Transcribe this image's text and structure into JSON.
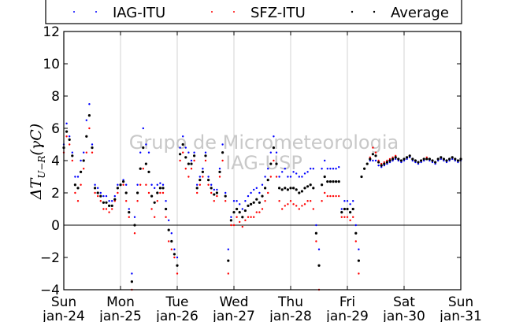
{
  "chart_data": {
    "type": "scatter",
    "ylabel": "ΔT_U−R(γC)",
    "ylabel_main": "ΔT",
    "ylabel_sub": "U−R",
    "ylabel_unit": "(γC)",
    "ylim": [
      -4,
      12
    ],
    "xlim": [
      0,
      7
    ],
    "yticks": [
      -4,
      -2,
      0,
      2,
      4,
      6,
      8,
      10,
      12
    ],
    "grid": "vertical",
    "legend_position": "top",
    "watermark": [
      "Grupo de Micrometeorologia",
      "IAG-USP"
    ],
    "xtick_labels": [
      {
        "day": "Sun",
        "date": "jan-24"
      },
      {
        "day": "Mon",
        "date": "jan-25"
      },
      {
        "day": "Tue",
        "date": "jan-26"
      },
      {
        "day": "Wed",
        "date": "jan-27"
      },
      {
        "day": "Thu",
        "date": "jan-28"
      },
      {
        "day": "Fri",
        "date": "jan-29"
      },
      {
        "day": "Sat",
        "date": "jan-30"
      },
      {
        "day": "Sun",
        "date": "jan-31"
      }
    ],
    "series": [
      {
        "name": "IAG-ITU",
        "color": "#0000ff",
        "x": [
          0.0,
          0.05,
          0.1,
          0.15,
          0.2,
          0.25,
          0.3,
          0.35,
          0.4,
          0.45,
          0.5,
          0.55,
          0.6,
          0.65,
          0.7,
          0.75,
          0.8,
          0.85,
          0.9,
          0.95,
          1.0,
          1.05,
          1.1,
          1.15,
          1.2,
          1.25,
          1.3,
          1.35,
          1.4,
          1.45,
          1.5,
          1.55,
          1.6,
          1.65,
          1.7,
          1.75,
          1.8,
          1.85,
          1.9,
          1.95,
          2.0,
          2.05,
          2.1,
          2.15,
          2.2,
          2.25,
          2.3,
          2.35,
          2.4,
          2.45,
          2.5,
          2.55,
          2.6,
          2.65,
          2.7,
          2.75,
          2.8,
          2.85,
          2.9,
          2.95,
          3.0,
          3.05,
          3.1,
          3.15,
          3.2,
          3.25,
          3.3,
          3.35,
          3.4,
          3.45,
          3.5,
          3.55,
          3.6,
          3.65,
          3.7,
          3.75,
          3.8,
          3.85,
          3.9,
          3.95,
          4.0,
          4.05,
          4.1,
          4.15,
          4.2,
          4.25,
          4.3,
          4.35,
          4.4,
          4.45,
          4.5,
          4.55,
          4.6,
          4.65,
          4.7,
          4.75,
          4.8,
          4.85,
          4.9,
          4.95,
          5.0,
          5.05,
          5.1,
          5.15,
          5.2,
          5.25,
          5.3,
          5.35,
          5.4,
          5.45,
          5.5,
          5.55,
          5.6,
          5.65,
          5.7,
          5.75,
          5.8,
          5.85,
          5.9,
          5.95,
          6.0,
          6.05,
          6.1,
          6.15,
          6.2,
          6.25,
          6.3,
          6.35,
          6.4,
          6.45,
          6.5,
          6.55,
          6.6,
          6.65,
          6.7,
          6.75,
          6.8,
          6.85,
          6.9,
          6.95,
          7.0
        ],
        "y": [
          5.0,
          6.3,
          5.5,
          4.5,
          3.0,
          3.0,
          4.0,
          4.5,
          6.5,
          7.5,
          5.0,
          2.5,
          2.3,
          2.0,
          1.8,
          1.8,
          1.5,
          1.5,
          1.8,
          2.5,
          2.5,
          2.8,
          2.5,
          1.0,
          -3.0,
          0.5,
          2.5,
          4.5,
          6.0,
          5.0,
          4.5,
          2.5,
          2.3,
          2.5,
          2.6,
          2.5,
          1.5,
          0.3,
          -0.5,
          -1.5,
          -2.0,
          4.8,
          5.5,
          4.8,
          4.5,
          4.0,
          4.5,
          2.5,
          3.0,
          3.5,
          4.5,
          3.0,
          2.5,
          2.2,
          2.2,
          3.5,
          5.0,
          2.0,
          -1.5,
          0.5,
          1.5,
          1.5,
          1.3,
          1.0,
          1.5,
          1.8,
          2.0,
          2.2,
          2.3,
          2.0,
          2.5,
          3.0,
          3.5,
          4.5,
          5.5,
          4.5,
          3.0,
          3.3,
          3.5,
          3.0,
          3.0,
          3.3,
          3.2,
          3.0,
          3.0,
          3.2,
          3.3,
          3.5,
          3.5,
          0.0,
          -1.5,
          3.5,
          4.0,
          3.5,
          3.5,
          3.5,
          3.5,
          3.6,
          1.0,
          1.5,
          1.5,
          1.3,
          1.5,
          0.0,
          -1.5,
          3.0,
          3.5,
          3.8,
          4.0,
          4.0,
          4.0,
          3.7,
          3.6,
          3.7,
          3.8,
          3.9,
          4.0,
          4.1,
          4.0,
          3.9,
          4.0,
          4.1,
          4.2,
          4.0,
          3.9,
          3.8,
          3.9,
          4.0,
          4.1,
          4.0,
          3.9,
          3.8,
          4.0,
          4.1,
          4.0,
          3.9,
          4.0,
          4.1,
          4.0,
          3.9,
          4.0
        ]
      },
      {
        "name": "SFZ-ITU",
        "color": "#ff0000",
        "x": [
          0.0,
          0.05,
          0.1,
          0.15,
          0.2,
          0.25,
          0.3,
          0.35,
          0.4,
          0.45,
          0.5,
          0.55,
          0.6,
          0.65,
          0.7,
          0.75,
          0.8,
          0.85,
          0.9,
          0.95,
          1.0,
          1.05,
          1.1,
          1.15,
          1.2,
          1.25,
          1.3,
          1.35,
          1.4,
          1.45,
          1.5,
          1.55,
          1.6,
          1.65,
          1.7,
          1.75,
          1.8,
          1.85,
          1.9,
          1.95,
          2.0,
          2.05,
          2.1,
          2.15,
          2.2,
          2.25,
          2.3,
          2.35,
          2.4,
          2.45,
          2.5,
          2.55,
          2.6,
          2.65,
          2.7,
          2.75,
          2.8,
          2.85,
          2.9,
          2.95,
          3.0,
          3.05,
          3.1,
          3.15,
          3.2,
          3.25,
          3.3,
          3.35,
          3.4,
          3.45,
          3.5,
          3.55,
          3.6,
          3.65,
          3.7,
          3.75,
          3.8,
          3.85,
          3.9,
          3.95,
          4.0,
          4.05,
          4.1,
          4.15,
          4.2,
          4.25,
          4.3,
          4.35,
          4.4,
          4.45,
          4.5,
          4.55,
          4.6,
          4.65,
          4.7,
          4.75,
          4.8,
          4.85,
          4.9,
          4.95,
          5.0,
          5.05,
          5.1,
          5.15,
          5.2,
          5.25,
          5.3,
          5.35,
          5.4,
          5.45,
          5.5,
          5.55,
          5.6,
          5.65,
          5.7,
          5.75,
          5.8,
          5.85,
          5.9,
          5.95,
          6.0,
          6.05,
          6.1,
          6.15,
          6.2,
          6.25,
          6.3,
          6.35,
          6.4,
          6.45,
          6.5,
          6.55,
          6.6,
          6.65,
          6.7,
          6.75,
          6.8,
          6.85,
          6.9,
          6.95,
          7.0
        ],
        "y": [
          4.5,
          5.5,
          5.0,
          4.0,
          2.0,
          1.5,
          2.5,
          3.5,
          4.5,
          6.0,
          4.5,
          2.0,
          1.8,
          1.5,
          1.0,
          1.0,
          0.8,
          1.0,
          1.5,
          2.0,
          2.5,
          2.5,
          1.5,
          0.5,
          -4.0,
          -0.5,
          1.5,
          2.5,
          3.5,
          2.5,
          2.0,
          1.0,
          0.5,
          1.5,
          2.0,
          2.0,
          0.5,
          -1.0,
          -1.5,
          -2.0,
          -3.0,
          4.0,
          4.5,
          3.5,
          3.0,
          3.5,
          4.0,
          2.0,
          2.5,
          3.0,
          4.0,
          2.5,
          2.0,
          1.5,
          1.8,
          3.0,
          4.0,
          1.5,
          -3.0,
          0.0,
          0.0,
          0.5,
          0.2,
          -0.1,
          0.3,
          0.5,
          0.5,
          0.5,
          0.8,
          0.8,
          1.0,
          1.5,
          2.0,
          3.0,
          4.0,
          3.0,
          1.5,
          1.0,
          1.2,
          1.3,
          1.5,
          1.3,
          1.2,
          1.0,
          1.2,
          1.3,
          1.5,
          1.5,
          1.0,
          -1.0,
          -4.0,
          1.5,
          2.0,
          1.8,
          1.8,
          1.8,
          1.8,
          1.8,
          0.5,
          0.5,
          0.5,
          0.3,
          0.5,
          -1.0,
          -3.0,
          3.0,
          3.5,
          3.8,
          4.2,
          4.8,
          4.5,
          4.0,
          3.8,
          3.9,
          4.0,
          4.1,
          4.2,
          4.3,
          4.1,
          4.0,
          4.1,
          4.2,
          4.3,
          4.1,
          4.0,
          3.9,
          4.0,
          4.1,
          4.2,
          4.1,
          4.0,
          3.9,
          4.1,
          4.2,
          4.1,
          4.0,
          4.1,
          4.2,
          4.1,
          4.0,
          4.1
        ]
      },
      {
        "name": "Average",
        "color": "#000000",
        "x": [
          0.0,
          0.05,
          0.1,
          0.15,
          0.2,
          0.25,
          0.3,
          0.35,
          0.4,
          0.45,
          0.5,
          0.55,
          0.6,
          0.65,
          0.7,
          0.75,
          0.8,
          0.85,
          0.9,
          0.95,
          1.0,
          1.05,
          1.1,
          1.15,
          1.2,
          1.25,
          1.3,
          1.35,
          1.4,
          1.45,
          1.5,
          1.55,
          1.6,
          1.65,
          1.7,
          1.75,
          1.8,
          1.85,
          1.9,
          1.95,
          2.0,
          2.05,
          2.1,
          2.15,
          2.2,
          2.25,
          2.3,
          2.35,
          2.4,
          2.45,
          2.5,
          2.55,
          2.6,
          2.65,
          2.7,
          2.75,
          2.8,
          2.85,
          2.9,
          2.95,
          3.0,
          3.05,
          3.1,
          3.15,
          3.2,
          3.25,
          3.3,
          3.35,
          3.4,
          3.45,
          3.5,
          3.55,
          3.6,
          3.65,
          3.7,
          3.75,
          3.8,
          3.85,
          3.9,
          3.95,
          4.0,
          4.05,
          4.1,
          4.15,
          4.2,
          4.25,
          4.3,
          4.35,
          4.4,
          4.45,
          4.5,
          4.55,
          4.6,
          4.65,
          4.7,
          4.75,
          4.8,
          4.85,
          4.9,
          4.95,
          5.0,
          5.05,
          5.1,
          5.15,
          5.2,
          5.25,
          5.3,
          5.35,
          5.4,
          5.45,
          5.5,
          5.55,
          5.6,
          5.65,
          5.7,
          5.75,
          5.8,
          5.85,
          5.9,
          5.95,
          6.0,
          6.05,
          6.1,
          6.15,
          6.2,
          6.25,
          6.3,
          6.35,
          6.4,
          6.45,
          6.5,
          6.55,
          6.6,
          6.65,
          6.7,
          6.75,
          6.8,
          6.85,
          6.9,
          6.95,
          7.0
        ],
        "y": [
          4.8,
          5.8,
          5.3,
          4.3,
          2.5,
          2.3,
          3.3,
          4.0,
          5.5,
          6.8,
          4.8,
          2.3,
          2.0,
          1.8,
          1.4,
          1.4,
          1.2,
          1.2,
          1.6,
          2.3,
          2.5,
          2.7,
          2.0,
          0.8,
          -3.5,
          0.0,
          2.0,
          3.5,
          4.8,
          3.8,
          3.3,
          1.8,
          1.4,
          2.0,
          2.3,
          2.3,
          1.0,
          -0.3,
          -1.0,
          -1.8,
          -2.5,
          4.4,
          5.0,
          4.2,
          3.8,
          3.8,
          4.3,
          2.3,
          2.8,
          3.3,
          4.3,
          2.8,
          2.3,
          1.9,
          2.0,
          3.3,
          4.5,
          1.8,
          -2.2,
          0.3,
          0.8,
          1.0,
          0.8,
          0.5,
          0.9,
          1.2,
          1.3,
          1.4,
          1.6,
          1.4,
          1.8,
          2.3,
          2.8,
          3.8,
          4.8,
          3.8,
          2.3,
          2.2,
          2.3,
          2.2,
          2.3,
          2.3,
          2.2,
          2.0,
          2.1,
          2.3,
          2.4,
          2.5,
          2.3,
          -0.5,
          -2.5,
          2.5,
          3.0,
          2.7,
          2.7,
          2.7,
          2.7,
          2.7,
          0.8,
          1.0,
          1.0,
          0.8,
          1.0,
          -0.5,
          -2.2,
          3.0,
          3.5,
          3.8,
          4.1,
          4.4,
          4.3,
          3.9,
          3.7,
          3.8,
          3.9,
          4.0,
          4.1,
          4.2,
          4.1,
          4.0,
          4.1,
          4.2,
          4.3,
          4.1,
          4.0,
          3.9,
          4.0,
          4.1,
          4.1,
          4.1,
          4.0,
          3.9,
          4.1,
          4.2,
          4.1,
          4.0,
          4.1,
          4.2,
          4.1,
          4.0,
          4.1
        ]
      }
    ]
  }
}
